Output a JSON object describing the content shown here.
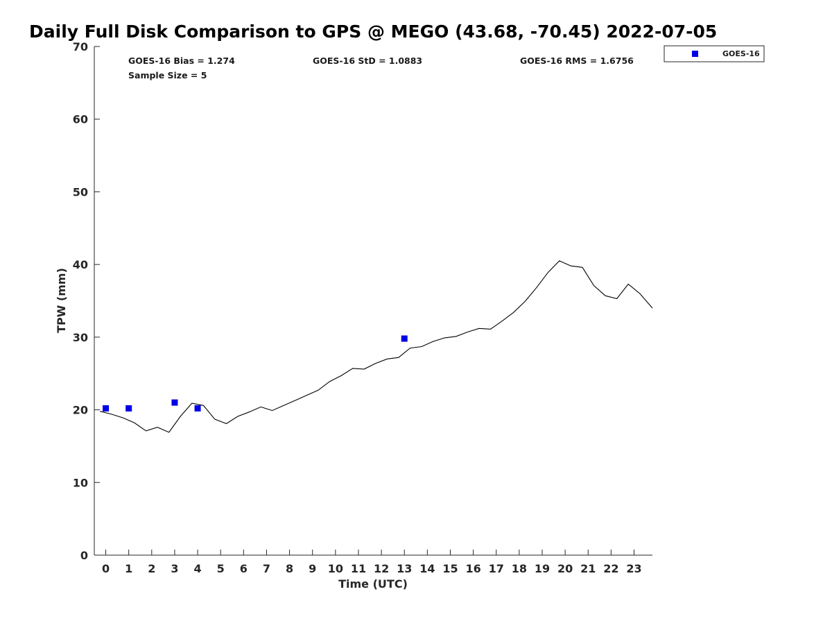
{
  "chart_data": {
    "type": "line",
    "title": "Daily Full Disk Comparison to GPS @ MEGO (43.68, -70.45) 2022-07-05",
    "xlabel": "Time (UTC)",
    "ylabel": "TPW (mm)",
    "xlim": [
      -0.5,
      23.8
    ],
    "ylim": [
      0,
      70
    ],
    "x_ticks": [
      0,
      1,
      2,
      3,
      4,
      5,
      6,
      7,
      8,
      9,
      10,
      11,
      12,
      13,
      14,
      15,
      16,
      17,
      18,
      19,
      20,
      21,
      22,
      23
    ],
    "y_ticks": [
      0,
      10,
      20,
      30,
      40,
      50,
      60,
      70
    ],
    "grid": false,
    "legend_position": "outside-top-right",
    "stats": [
      {
        "label": "GOES-16 Bias = 1.274"
      },
      {
        "label": "GOES-16 StD = 1.0883"
      },
      {
        "label": "GOES-16 RMS = 1.6756"
      },
      {
        "label": "Sample Size = 5"
      }
    ],
    "series": [
      {
        "kind": "line",
        "color": "#000000",
        "points": [
          [
            -0.25,
            19.8
          ],
          [
            0.25,
            19.4
          ],
          [
            0.75,
            18.9
          ],
          [
            1.25,
            18.2
          ],
          [
            1.75,
            17.1
          ],
          [
            2.25,
            17.6
          ],
          [
            2.75,
            16.9
          ],
          [
            3.25,
            19.1
          ],
          [
            3.75,
            20.9
          ],
          [
            4.25,
            20.6
          ],
          [
            4.75,
            18.7
          ],
          [
            5.25,
            18.1
          ],
          [
            5.75,
            19.1
          ],
          [
            6.25,
            19.7
          ],
          [
            6.75,
            20.4
          ],
          [
            7.25,
            19.9
          ],
          [
            7.75,
            20.6
          ],
          [
            8.25,
            21.3
          ],
          [
            8.75,
            22.0
          ],
          [
            9.25,
            22.7
          ],
          [
            9.75,
            23.9
          ],
          [
            10.25,
            24.7
          ],
          [
            10.75,
            25.7
          ],
          [
            11.25,
            25.6
          ],
          [
            11.75,
            26.4
          ],
          [
            12.25,
            27.0
          ],
          [
            12.75,
            27.2
          ],
          [
            13.25,
            28.5
          ],
          [
            13.75,
            28.7
          ],
          [
            14.25,
            29.4
          ],
          [
            14.75,
            29.9
          ],
          [
            15.25,
            30.1
          ],
          [
            15.75,
            30.7
          ],
          [
            16.25,
            31.2
          ],
          [
            16.75,
            31.1
          ],
          [
            17.25,
            32.2
          ],
          [
            17.75,
            33.4
          ],
          [
            18.25,
            34.9
          ],
          [
            18.75,
            36.8
          ],
          [
            19.25,
            38.9
          ],
          [
            19.75,
            40.5
          ],
          [
            20.25,
            39.8
          ],
          [
            20.75,
            39.6
          ],
          [
            21.25,
            37.1
          ],
          [
            21.75,
            35.7
          ],
          [
            22.25,
            35.3
          ],
          [
            22.75,
            37.3
          ],
          [
            23.25,
            36.0
          ],
          [
            23.8,
            34.0
          ]
        ]
      },
      {
        "kind": "scatter",
        "name": "GOES-16",
        "color": "#0000e6",
        "points": [
          [
            0,
            20.2
          ],
          [
            1,
            20.2
          ],
          [
            3,
            21.0
          ],
          [
            4,
            20.2
          ],
          [
            13,
            29.8
          ]
        ]
      }
    ]
  }
}
